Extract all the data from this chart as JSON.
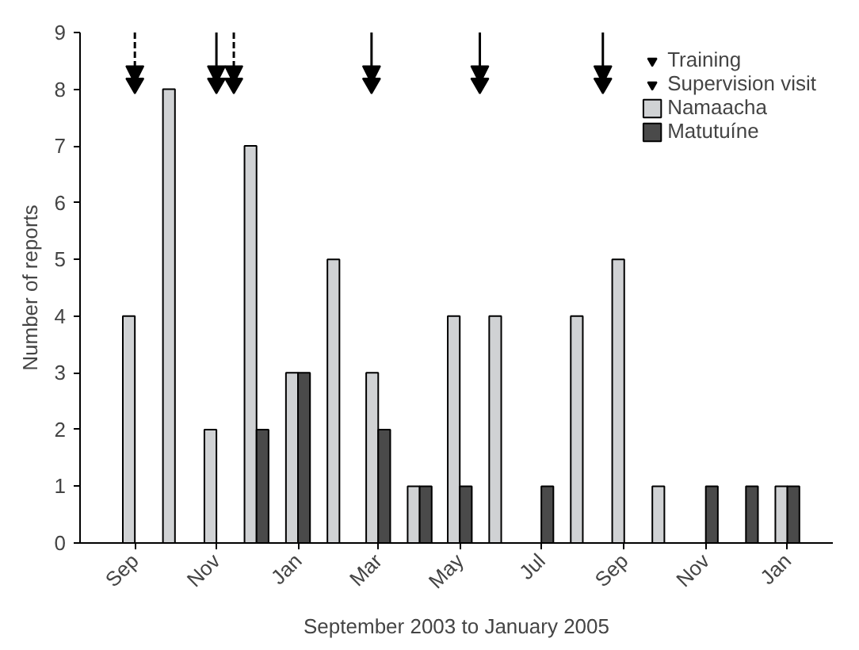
{
  "chart_data": {
    "type": "bar",
    "xlabel": "September 2003 to January 2005",
    "ylabel": "Number of reports",
    "x": [
      "2003-09",
      "2003-10",
      "2003-11",
      "2003-12",
      "2004-01",
      "2004-02",
      "2004-03",
      "2004-04",
      "2004-05",
      "2004-06",
      "2004-07",
      "2004-08",
      "2004-09",
      "2004-10",
      "2004-11",
      "2004-12",
      "2005-01"
    ],
    "xlim": [
      "2003-07-22",
      "2005-02-04"
    ],
    "xticks": [
      {
        "value": "2003-09",
        "label": "Sep"
      },
      {
        "value": "2003-11",
        "label": "Nov"
      },
      {
        "value": "2004-01",
        "label": "Jan"
      },
      {
        "value": "2004-03",
        "label": "Mar"
      },
      {
        "value": "2004-05",
        "label": "May"
      },
      {
        "value": "2004-07",
        "label": "Jul"
      },
      {
        "value": "2004-09",
        "label": "Sep"
      },
      {
        "value": "2004-11",
        "label": "Nov"
      },
      {
        "value": "2005-01",
        "label": "Jan"
      }
    ],
    "ylim": [
      0,
      9
    ],
    "yticks": [
      0,
      1,
      2,
      3,
      4,
      5,
      6,
      7,
      8,
      9
    ],
    "series": [
      {
        "name": "Training",
        "type": "scatter",
        "line_style": "dashed",
        "color": "#000000",
        "x": [
          "2003-09-01",
          "2003-11-14"
        ],
        "values": [
          8.1,
          8.1
        ]
      },
      {
        "name": "Supervision visit",
        "type": "scatter",
        "line_style": "solid",
        "color": "#000000",
        "x": [
          "2003-11-01",
          "2004-02-25",
          "2004-05-16",
          "2004-08-16"
        ],
        "values": [
          8.1,
          8.1,
          8.1,
          8.1
        ]
      },
      {
        "name": "Namaacha",
        "color": "#d0d2d4",
        "values": [
          4,
          8,
          2,
          7,
          3,
          5,
          3,
          1,
          4,
          4,
          null,
          4,
          5,
          1,
          null,
          null,
          1
        ]
      },
      {
        "name": "Matutuíne",
        "color": "#4a4a4a",
        "values": [
          null,
          null,
          null,
          2,
          3,
          null,
          2,
          1,
          1,
          null,
          1,
          null,
          null,
          null,
          1,
          1,
          1
        ]
      }
    ],
    "grid": false,
    "legend": "top right"
  }
}
